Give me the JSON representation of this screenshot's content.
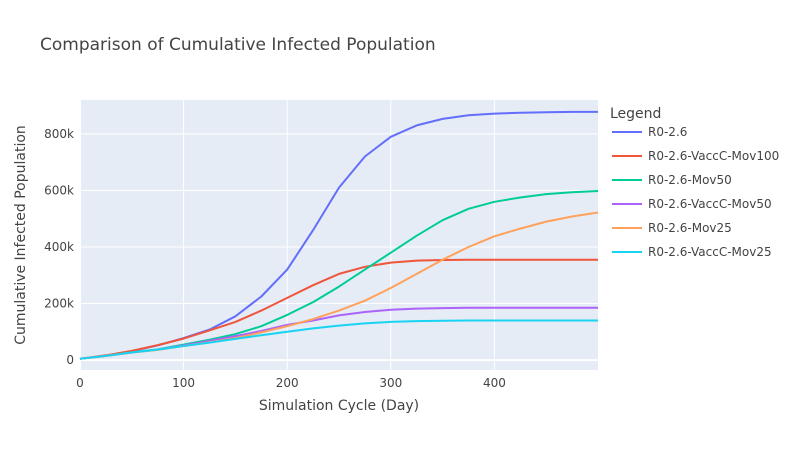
{
  "chart_data": {
    "type": "line",
    "title": "Comparison of Cumulative Infected Population",
    "xlabel": "Simulation Cycle (Day)",
    "ylabel": "Cumulative Infected Population",
    "xlim": [
      0,
      500
    ],
    "ylim": [
      -35000,
      920000
    ],
    "x_ticks": [
      {
        "value": 0,
        "label": "0"
      },
      {
        "value": 100,
        "label": "100"
      },
      {
        "value": 200,
        "label": "200"
      },
      {
        "value": 300,
        "label": "300"
      },
      {
        "value": 400,
        "label": "400"
      }
    ],
    "y_ticks": [
      {
        "value": 0,
        "label": "0"
      },
      {
        "value": 200000,
        "label": "200k"
      },
      {
        "value": 400000,
        "label": "400k"
      },
      {
        "value": 600000,
        "label": "600k"
      },
      {
        "value": 800000,
        "label": "800k"
      }
    ],
    "grid": true,
    "legend_title": "Legend",
    "legend_position": "right",
    "x": [
      0,
      25,
      50,
      75,
      100,
      125,
      150,
      175,
      200,
      225,
      250,
      275,
      300,
      325,
      350,
      375,
      400,
      425,
      450,
      475,
      500
    ],
    "series": [
      {
        "name": "R0-2.6",
        "color": "#636efa",
        "values": [
          5000,
          15000,
          32000,
          52000,
          78000,
          108000,
          155000,
          225000,
          320000,
          460000,
          610000,
          720000,
          790000,
          830000,
          853000,
          866000,
          872000,
          875000,
          877000,
          878000,
          878000
        ]
      },
      {
        "name": "R0-2.6-VaccC-Mov100",
        "color": "#ef553b",
        "values": [
          5000,
          17000,
          33000,
          53000,
          76000,
          105000,
          135000,
          175000,
          220000,
          265000,
          305000,
          330000,
          345000,
          352000,
          354000,
          355000,
          355000,
          355000,
          355000,
          355000,
          355000
        ]
      },
      {
        "name": "R0-2.6-Mov50",
        "color": "#00cc96",
        "values": [
          5000,
          15000,
          28000,
          38000,
          55000,
          72000,
          92000,
          120000,
          160000,
          205000,
          260000,
          320000,
          380000,
          440000,
          495000,
          535000,
          560000,
          575000,
          587000,
          594000,
          598000
        ]
      },
      {
        "name": "R0-2.6-VaccC-Mov50",
        "color": "#ab63fa",
        "values": [
          5000,
          15000,
          27000,
          37000,
          52000,
          68000,
          85000,
          103000,
          125000,
          140000,
          158000,
          170000,
          178000,
          182000,
          184000,
          185000,
          185000,
          185000,
          185000,
          185000,
          185000
        ]
      },
      {
        "name": "R0-2.6-Mov25",
        "color": "#ffa15a",
        "values": [
          5000,
          15000,
          27000,
          36000,
          50000,
          63000,
          78000,
          98000,
          120000,
          145000,
          175000,
          210000,
          255000,
          305000,
          355000,
          400000,
          438000,
          465000,
          490000,
          508000,
          522000
        ]
      },
      {
        "name": "R0-2.6-VaccC-Mov25",
        "color": "#19d3f3",
        "values": [
          5000,
          15000,
          27000,
          37000,
          50000,
          62000,
          75000,
          88000,
          100000,
          112000,
          122000,
          130000,
          135000,
          138000,
          139000,
          140000,
          140000,
          140000,
          140000,
          140000,
          140000
        ]
      }
    ]
  }
}
